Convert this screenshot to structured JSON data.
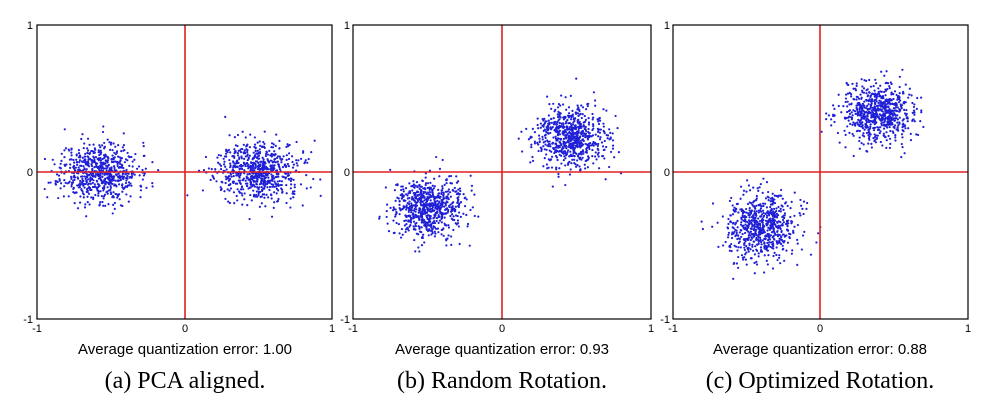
{
  "chart_data": [
    {
      "type": "scatter",
      "caption": "(a)  PCA aligned.",
      "error_label": "Average quantization error: 1.00",
      "xlim": [
        -1,
        1
      ],
      "ylim": [
        -1,
        1
      ],
      "x_ticks": [
        "-1",
        "0",
        "1"
      ],
      "y_ticks": [
        "1",
        "0",
        "-1"
      ],
      "grid": false,
      "axis_line_color": "#e02020",
      "point_color": "#1f1fd6",
      "clusters": [
        {
          "center": [
            -0.58,
            0.0
          ],
          "spread": [
            0.13,
            0.1
          ],
          "count": 700
        },
        {
          "center": [
            0.5,
            0.0
          ],
          "spread": [
            0.14,
            0.1
          ],
          "count": 700
        }
      ]
    },
    {
      "type": "scatter",
      "caption": "(b)  Random Rotation.",
      "error_label": "Average quantization error: 0.93",
      "xlim": [
        -1,
        1
      ],
      "ylim": [
        -1,
        1
      ],
      "x_ticks": [
        "-1",
        "0",
        "1"
      ],
      "y_ticks": [
        "1",
        "0",
        "-1"
      ],
      "grid": false,
      "axis_line_color": "#e02020",
      "point_color": "#1f1fd6",
      "clusters": [
        {
          "center": [
            -0.5,
            -0.24
          ],
          "spread": [
            0.12,
            0.1
          ],
          "count": 700
        },
        {
          "center": [
            0.46,
            0.23
          ],
          "spread": [
            0.12,
            0.1
          ],
          "count": 700
        }
      ]
    },
    {
      "type": "scatter",
      "caption": "(c)  Optimized Rotation.",
      "error_label": "Average quantization error: 0.88",
      "xlim": [
        -1,
        1
      ],
      "ylim": [
        -1,
        1
      ],
      "x_ticks": [
        "-1",
        "0",
        "1"
      ],
      "y_ticks": [
        "1",
        "0",
        "-1"
      ],
      "grid": false,
      "axis_line_color": "#e02020",
      "point_color": "#1f1fd6",
      "clusters": [
        {
          "center": [
            -0.4,
            -0.38
          ],
          "spread": [
            0.12,
            0.11
          ],
          "count": 700
        },
        {
          "center": [
            0.38,
            0.4
          ],
          "spread": [
            0.12,
            0.1
          ],
          "count": 700
        }
      ]
    }
  ]
}
